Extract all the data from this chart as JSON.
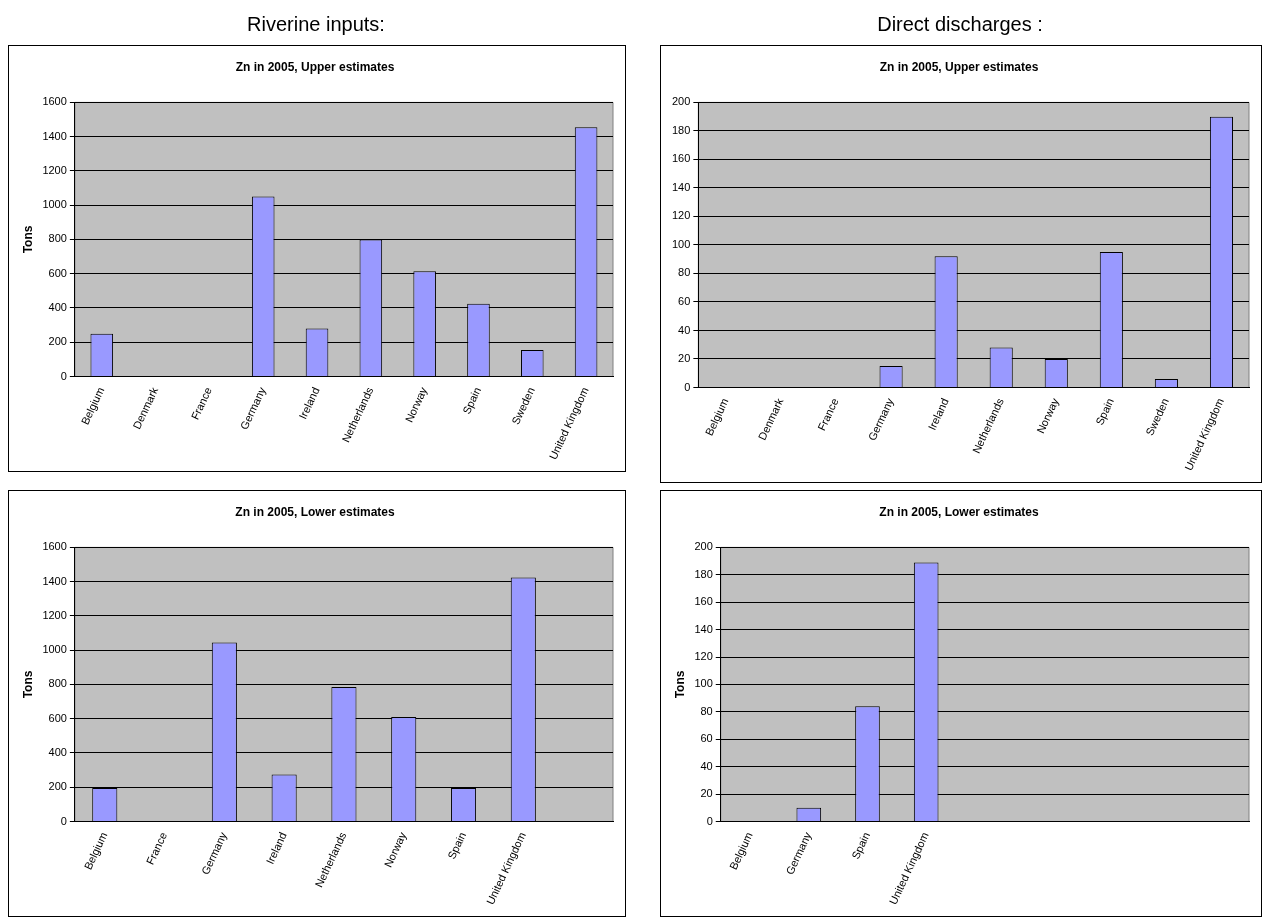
{
  "chart_data": [
    {
      "type": "bar",
      "title": "Zn in 2005, Upper estimates",
      "ylabel": "Tons",
      "annotations": [
        "Riverine inputs:"
      ],
      "categories": [
        "Belgium",
        "Denmark",
        "France",
        "Germany",
        "Ireland",
        "Netherlands",
        "Norway",
        "Spain",
        "Sweden",
        "United Kingdom"
      ],
      "values": [
        250,
        0,
        0,
        1050,
        280,
        800,
        615,
        425,
        155,
        1455
      ],
      "color": "#9999ff",
      "ylim": [
        0,
        1600
      ],
      "yticks": [
        0,
        200,
        400,
        600,
        800,
        1000,
        1200,
        1400,
        1600
      ],
      "grid": "y",
      "legend": false
    },
    {
      "type": "bar",
      "title": "Zn in 2005, Upper estimates",
      "annotations": [
        "Direct discharges :"
      ],
      "categories": [
        "Belgium",
        "Denmark",
        "France",
        "Germany",
        "Ireland",
        "Netherlands",
        "Norway",
        "Spain",
        "Sweden",
        "United Kingdom"
      ],
      "values": [
        0,
        0,
        0,
        15,
        92,
        28,
        20,
        95,
        6,
        190
      ],
      "color": "#9999ff",
      "ylim": [
        0,
        200
      ],
      "yticks": [
        0,
        20,
        40,
        60,
        80,
        100,
        120,
        140,
        160,
        180,
        200
      ],
      "grid": "y",
      "legend": false
    },
    {
      "type": "bar",
      "title": "Zn in 2005, Lower estimates",
      "ylabel": "Tons",
      "categories": [
        "Belgium",
        "France",
        "Germany",
        "Ireland",
        "Netherlands",
        "Norway",
        "Spain",
        "United Kingdom",
        null
      ],
      "values": [
        195,
        0,
        1045,
        275,
        785,
        610,
        195,
        1425,
        null
      ],
      "color": "#9999ff",
      "ylim": [
        0,
        1600
      ],
      "yticks": [
        0,
        200,
        400,
        600,
        800,
        1000,
        1200,
        1400,
        1600
      ],
      "grid": "y",
      "legend": false
    },
    {
      "type": "bar",
      "title": "Zn in 2005, Lower estimates",
      "ylabel": "Tons",
      "categories": [
        "Belgium",
        "Germany",
        "Spain",
        "United Kingdom",
        null,
        null,
        null,
        null,
        null
      ],
      "values": [
        0,
        10,
        84,
        189,
        null,
        null,
        null,
        null,
        null
      ],
      "color": "#9999ff",
      "ylim": [
        0,
        200
      ],
      "yticks": [
        0,
        20,
        40,
        60,
        80,
        100,
        120,
        140,
        160,
        180,
        200
      ],
      "grid": "y",
      "legend": false
    }
  ]
}
